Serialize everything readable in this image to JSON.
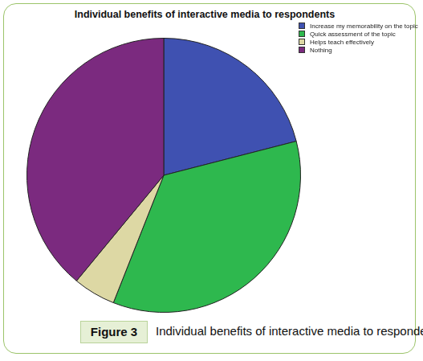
{
  "chart_data": {
    "type": "pie",
    "title": "Individual benefits of interactive media to respondents",
    "categories": [
      "Increase my memorability on the topic",
      "Quick assessment of the topic",
      "Helps teach effectively",
      "Nothing"
    ],
    "values": [
      21,
      35,
      5,
      39
    ],
    "colors": [
      "#3f51b1",
      "#2eb84e",
      "#ddd8a4",
      "#7b2a7f"
    ],
    "legend": "top-right",
    "figure_label": "Figure 3",
    "caption": "Individual benefits of interactive media to respondents."
  }
}
